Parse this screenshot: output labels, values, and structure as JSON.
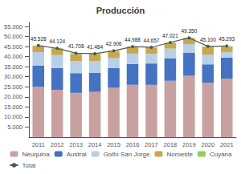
{
  "chart_data": {
    "type": "bar",
    "title": "Producción",
    "categories": [
      "2011",
      "2012",
      "2013",
      "2014",
      "2015",
      "2016",
      "2017",
      "2018",
      "2019",
      "2020",
      "2021"
    ],
    "stacked": true,
    "grid": false,
    "legend": "bottom",
    "ylim": [
      0,
      57000
    ],
    "yticks": [
      {
        "value": 5000,
        "label": "5.000"
      },
      {
        "value": 10000,
        "label": "10.000"
      },
      {
        "value": 15000,
        "label": "15.000"
      },
      {
        "value": 20000,
        "label": "20.000"
      },
      {
        "value": 25000,
        "label": "25.000"
      },
      {
        "value": 30000,
        "label": "30.000"
      },
      {
        "value": 35000,
        "label": "35.000"
      },
      {
        "value": 40000,
        "label": "40.000"
      },
      {
        "value": 45000,
        "label": "45.000"
      },
      {
        "value": 50000,
        "label": "50.000"
      },
      {
        "value": 55000,
        "label": "55.000"
      }
    ],
    "series": [
      {
        "name": "Neuquina",
        "type": "bar",
        "color": "#c9a0a0",
        "values": [
          25000,
          23500,
          22000,
          22500,
          24500,
          26000,
          26000,
          28000,
          30500,
          27000,
          29000
        ]
      },
      {
        "name": "Austral",
        "type": "bar",
        "color": "#4472c4",
        "values": [
          10500,
          10800,
          9800,
          9500,
          9800,
          10300,
          10600,
          11200,
          11500,
          9200,
          10500
        ]
      },
      {
        "name": "Golfo San Jorge",
        "type": "bar",
        "color": "#b8cfe8",
        "values": [
          6800,
          6500,
          6000,
          5800,
          5000,
          5200,
          4800,
          4800,
          4200,
          4800,
          2800
        ]
      },
      {
        "name": "Noroeste",
        "type": "bar",
        "color": "#c8a84b",
        "values": [
          2900,
          3000,
          3500,
          3300,
          3200,
          3100,
          2900,
          2700,
          2700,
          3700,
          2600
        ]
      },
      {
        "name": "Cuyana",
        "type": "bar",
        "color": "#92d050",
        "values": [
          328,
          324,
          408,
          384,
          406,
          388,
          357,
          321,
          450,
          400,
          393
        ]
      },
      {
        "name": "Total",
        "type": "line",
        "color": "#555555",
        "marker": "circle",
        "values": [
          45528,
          44124,
          41708,
          41484,
          42906,
          44988,
          44657,
          47021,
          49350,
          45100,
          45293
        ],
        "value_labels": [
          "45.528",
          "44.124",
          "41.708",
          "41.484",
          "42.906",
          "44.988",
          "44.657",
          "47.021",
          "49.350",
          "45.100",
          "45.293"
        ]
      }
    ]
  }
}
